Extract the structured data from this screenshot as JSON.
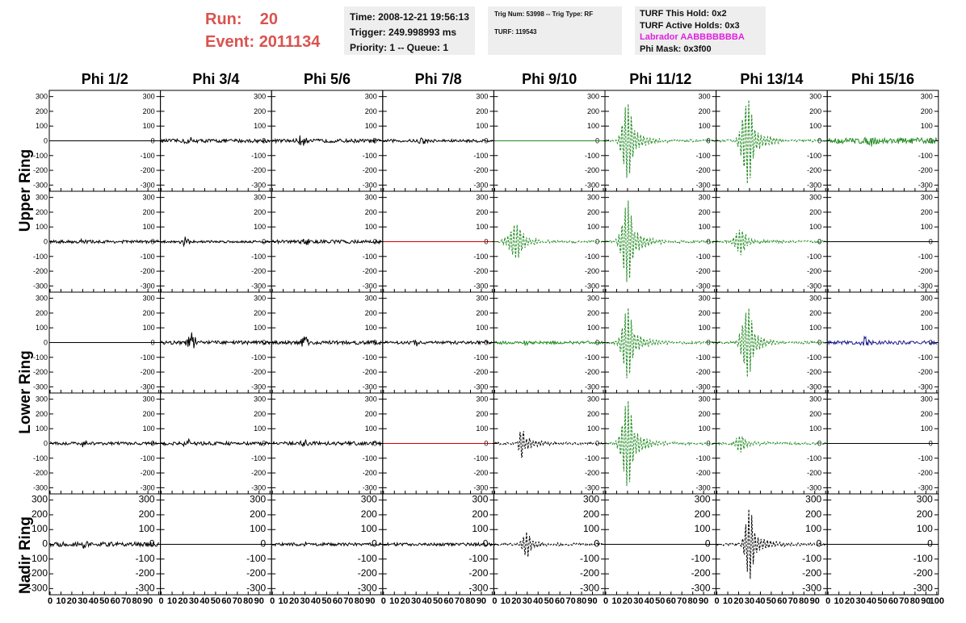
{
  "header": {
    "run_label": "Run:",
    "run_value": "20",
    "event_label": "Event:",
    "event_value": "2011134"
  },
  "info_box": {
    "time": "Time: 2008-12-21 19:56:13",
    "trigger": "Trigger: 249.998993 ms",
    "priority": "Priority: 1 -- Queue: 1"
  },
  "trig_box": {
    "trig": "Trig Num: 53998 -- Trig Type: RF",
    "turf": "TURF: 119543"
  },
  "turf_box": {
    "hold": "TURF This Hold: 0x2",
    "active": "TURF Active Holds: 0x3",
    "labrador": "Labrador AABBBBBBBA",
    "mask": "Phi Mask: 0x3f00"
  },
  "colors": {
    "black": "#000000",
    "green": "#228B22",
    "red": "#cc0000",
    "blue": "#1a1a8c",
    "accent": "#d9534f",
    "magenta": "#e020e0"
  },
  "chart_data": {
    "type": "line",
    "columns": [
      "Phi 1/2",
      "Phi 3/4",
      "Phi 5/6",
      "Phi 7/8",
      "Phi 9/10",
      "Phi 11/12",
      "Phi 13/14",
      "Phi 15/16"
    ],
    "rows": [
      "Upper Ring",
      "Upper Ring",
      "Lower Ring",
      "Lower Ring",
      "Nadir Ring"
    ],
    "row_labels": [
      "Upper Ring",
      "Lower Ring",
      "Nadir Ring"
    ],
    "xlim": [
      0,
      100
    ],
    "ylim": [
      -320,
      320
    ],
    "x_ticks": [
      0,
      10,
      20,
      30,
      40,
      50,
      60,
      70,
      80,
      90,
      100
    ],
    "y_ticks": [
      -300,
      -200,
      -100,
      0,
      100,
      200,
      300
    ],
    "y_ticks_small": [
      "-300",
      "-200",
      "-100",
      "0",
      "100",
      "200",
      "300"
    ],
    "panels": [
      [
        {
          "t": "flat",
          "c": "black"
        },
        {
          "t": "noise",
          "a": 12,
          "c": "black",
          "p": 25,
          "pa": 25
        },
        {
          "t": "noise",
          "a": 12,
          "c": "black",
          "p": 28,
          "pa": 60
        },
        {
          "t": "noise",
          "a": 10,
          "c": "black",
          "p": 35,
          "pa": 30
        },
        {
          "t": "flat",
          "c": "green"
        },
        {
          "t": "pulse",
          "c": "green",
          "dash": true,
          "p": 20,
          "pa": 260,
          "w": 6
        },
        {
          "t": "pulse",
          "c": "green",
          "dash": true,
          "p": 28,
          "pa": 300,
          "w": 6
        },
        {
          "t": "noise",
          "a": 20,
          "c": "green",
          "p": 40,
          "pa": 30
        }
      ],
      [
        {
          "t": "noise",
          "a": 10,
          "c": "black",
          "p": 30,
          "pa": 20
        },
        {
          "t": "noise",
          "a": 8,
          "c": "black",
          "p": 22,
          "pa": 45
        },
        {
          "t": "noise",
          "a": 12,
          "c": "black",
          "p": 30,
          "pa": 25
        },
        {
          "t": "flat",
          "c": "red"
        },
        {
          "t": "pulse",
          "c": "green",
          "dash": true,
          "p": 20,
          "pa": 120,
          "w": 8
        },
        {
          "t": "pulse",
          "c": "green",
          "dash": true,
          "p": 20,
          "pa": 280,
          "w": 6
        },
        {
          "t": "pulse",
          "c": "green",
          "dash": true,
          "p": 22,
          "pa": 90,
          "w": 6
        },
        {
          "t": "flat",
          "c": "black"
        }
      ],
      [
        {
          "t": "flat",
          "c": "black"
        },
        {
          "t": "noise",
          "a": 12,
          "c": "black",
          "p": 28,
          "pa": 90
        },
        {
          "t": "noise",
          "a": 12,
          "c": "black",
          "p": 30,
          "pa": 50
        },
        {
          "t": "noise",
          "a": 10,
          "c": "black",
          "p": 30,
          "pa": 20
        },
        {
          "t": "noise",
          "a": 10,
          "c": "green",
          "p": 30,
          "pa": 20
        },
        {
          "t": "pulse",
          "c": "green",
          "dash": true,
          "p": 20,
          "pa": 240,
          "w": 6
        },
        {
          "t": "pulse",
          "c": "green",
          "dash": true,
          "p": 28,
          "pa": 240,
          "w": 6
        },
        {
          "t": "noise",
          "a": 12,
          "c": "blue",
          "p": 35,
          "pa": 40
        }
      ],
      [
        {
          "t": "noise",
          "a": 10,
          "c": "black",
          "p": 30,
          "pa": 20
        },
        {
          "t": "noise",
          "a": 12,
          "c": "black",
          "p": 25,
          "pa": 30
        },
        {
          "t": "noise",
          "a": 12,
          "c": "black",
          "p": 30,
          "pa": 25
        },
        {
          "t": "flat",
          "c": "red"
        },
        {
          "t": "pulse",
          "c": "black",
          "dash": true,
          "p": 25,
          "pa": 120,
          "w": 3
        },
        {
          "t": "pulse",
          "c": "green",
          "dash": true,
          "p": 20,
          "pa": 300,
          "w": 6
        },
        {
          "t": "pulse",
          "c": "green",
          "dash": true,
          "p": 22,
          "pa": 60,
          "w": 6
        },
        {
          "t": "flat",
          "c": "black"
        }
      ],
      [
        {
          "t": "noise",
          "a": 15,
          "c": "black",
          "p": 30,
          "pa": 20
        },
        {
          "t": "flat",
          "c": "black"
        },
        {
          "t": "noise",
          "a": 10,
          "c": "black",
          "p": 30,
          "pa": 15
        },
        {
          "t": "noise",
          "a": 10,
          "c": "black",
          "p": 30,
          "pa": 15
        },
        {
          "t": "pulse",
          "c": "black",
          "dash": true,
          "p": 30,
          "pa": 80,
          "w": 5
        },
        {
          "t": "flat",
          "c": "black"
        },
        {
          "t": "pulse",
          "c": "black",
          "dash": true,
          "p": 30,
          "pa": 240,
          "w": 5
        },
        {
          "t": "flat",
          "c": "black"
        }
      ]
    ]
  }
}
